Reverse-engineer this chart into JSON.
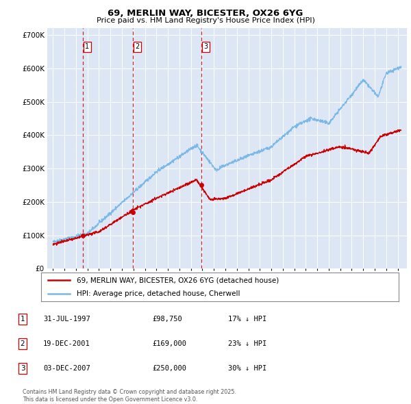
{
  "title": "69, MERLIN WAY, BICESTER, OX26 6YG",
  "subtitle": "Price paid vs. HM Land Registry's House Price Index (HPI)",
  "ylim": [
    0,
    720000
  ],
  "background_color": "#ffffff",
  "plot_bg_color": "#dce6f5",
  "grid_color": "#ffffff",
  "sale_color": "#cc0000",
  "hpi_color": "#7ab8e8",
  "vline_color": "#cc0000",
  "sales": [
    {
      "date_num": 1997.58,
      "price": 98750,
      "label": "1",
      "date_str": "31-JUL-1997",
      "pct": "17% ↓ HPI"
    },
    {
      "date_num": 2001.97,
      "price": 169000,
      "label": "2",
      "date_str": "19-DEC-2001",
      "pct": "23% ↓ HPI"
    },
    {
      "date_num": 2007.92,
      "price": 250000,
      "label": "3",
      "date_str": "03-DEC-2007",
      "pct": "30% ↓ HPI"
    }
  ],
  "legend_line1": "69, MERLIN WAY, BICESTER, OX26 6YG (detached house)",
  "legend_line2": "HPI: Average price, detached house, Cherwell",
  "footnote": "Contains HM Land Registry data © Crown copyright and database right 2025.\nThis data is licensed under the Open Government Licence v3.0.",
  "yticks": [
    0,
    100000,
    200000,
    300000,
    400000,
    500000,
    600000,
    700000
  ],
  "ytick_labels": [
    "£0",
    "£100K",
    "£200K",
    "£300K",
    "£400K",
    "£500K",
    "£600K",
    "£700K"
  ],
  "xmin": 1994.5,
  "xmax": 2025.8,
  "table_rows": [
    {
      "num": "1",
      "date": "31-JUL-1997",
      "price": "£98,750",
      "pct": "17% ↓ HPI"
    },
    {
      "num": "2",
      "date": "19-DEC-2001",
      "price": "£169,000",
      "pct": "23% ↓ HPI"
    },
    {
      "num": "3",
      "date": "03-DEC-2007",
      "price": "£250,000",
      "pct": "30% ↓ HPI"
    }
  ]
}
